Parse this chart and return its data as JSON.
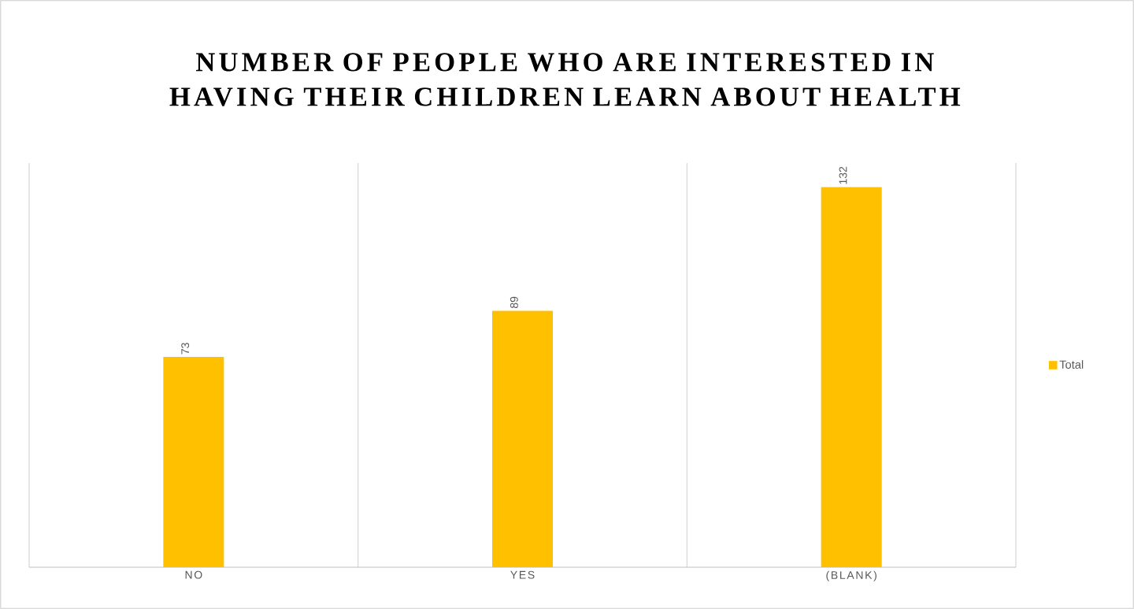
{
  "chart_data": {
    "type": "bar",
    "title": "NUMBER OF PEOPLE WHO ARE INTERESTED IN HAVING THEIR CHILDREN LEARN ABOUT HEALTH",
    "categories": [
      "NO",
      "YES",
      "(BLANK)"
    ],
    "series": [
      {
        "name": "Total",
        "color": "#ffc000",
        "values": [
          73,
          89,
          132
        ]
      }
    ],
    "data_labels": true,
    "legend": "right",
    "grid": "x"
  }
}
